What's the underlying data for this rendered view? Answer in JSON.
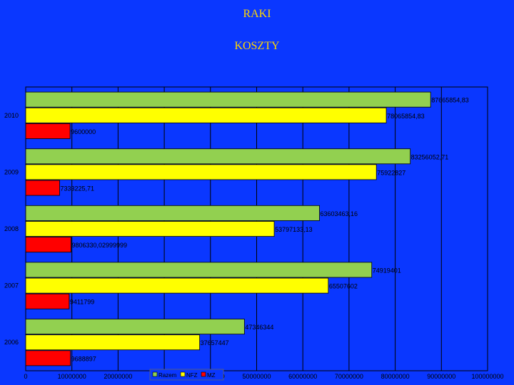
{
  "chart_data": {
    "type": "bar",
    "orientation": "horizontal",
    "title": "RAKI",
    "subtitle": "KOSZTY",
    "categories": [
      "2010",
      "2009",
      "2008",
      "2007",
      "2006"
    ],
    "series": [
      {
        "name": "Razem",
        "color": "#92d050",
        "values": [
          87665854.83,
          83256052.71,
          63603463.16,
          74919401,
          47346344
        ],
        "labels": [
          "87665854,83",
          "83256052,71",
          "63603463,16",
          "74919401",
          "47346344"
        ]
      },
      {
        "name": "NFZ",
        "color": "#ffff00",
        "values": [
          78065854.83,
          75922827,
          53797133.13,
          65507602,
          37657447
        ],
        "labels": [
          "78065854,83",
          "75922827",
          "53797133,13",
          "65507602",
          "37657447"
        ]
      },
      {
        "name": "MZ",
        "color": "#ff0000",
        "values": [
          9600000,
          7333225.71,
          9806330.02999999,
          9411799,
          9688897
        ],
        "labels": [
          "9600000",
          "7333225,71",
          "9806330,02999999",
          "9411799",
          "9688897"
        ]
      }
    ],
    "xlim": [
      0,
      100000000
    ],
    "x_ticks": [
      0,
      10000000,
      20000000,
      30000000,
      40000000,
      50000000,
      60000000,
      70000000,
      80000000,
      90000000,
      100000000
    ],
    "x_tick_labels": [
      "0",
      "10000000",
      "20000000",
      "30000000",
      "40000000",
      "50000000",
      "60000000",
      "70000000",
      "80000000",
      "90000000",
      "100000000"
    ],
    "grid": true,
    "legend_position": "bottom",
    "colors": {
      "background": "#0a37ff",
      "plot_area": "#0a37ff",
      "grid": "#000000",
      "text": "#000000",
      "title": "#ffd700"
    }
  }
}
